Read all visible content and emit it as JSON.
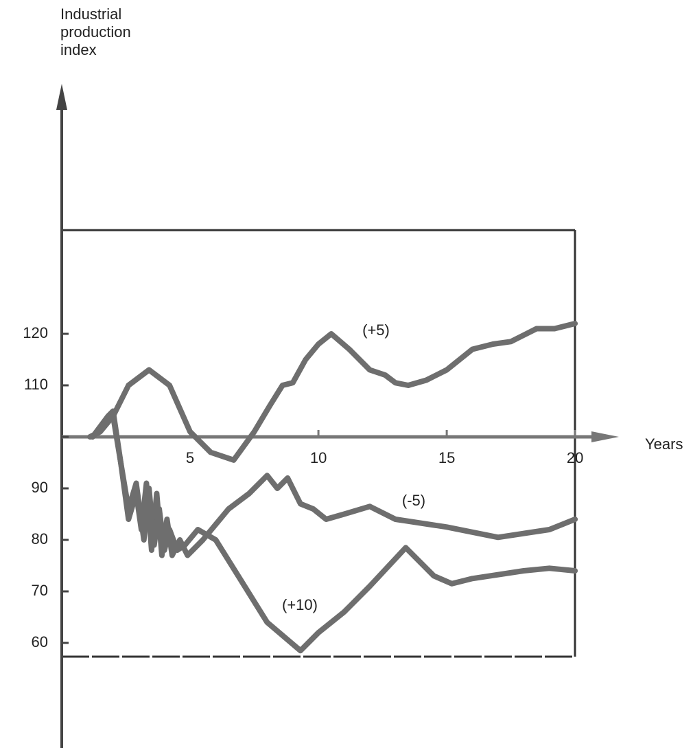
{
  "chart_data": {
    "type": "line",
    "ylabel": [
      "Industrial",
      "production",
      "index"
    ],
    "xlabel": "Years",
    "xlim": [
      0,
      21.6
    ],
    "xticks": [
      5,
      10,
      15,
      20
    ],
    "ylim": [
      40,
      168
    ],
    "yticks": [
      60,
      70,
      80,
      90,
      100,
      110,
      120
    ],
    "ytick_labels_hidden": [
      100
    ],
    "series": [
      {
        "name": "(+5)",
        "color": "#6e6e6e",
        "x": [
          1.1,
          1.5,
          2.0,
          2.6,
          3.4,
          4.2,
          5.0,
          5.8,
          6.7,
          7.5,
          8.1,
          8.6,
          9.0,
          9.5,
          10.0,
          10.5,
          11.2,
          12.0,
          12.6,
          13.0,
          13.5,
          14.2,
          15.0,
          16.0,
          16.8,
          17.5,
          18.5,
          19.2,
          20.0
        ],
        "values": [
          100,
          101,
          104,
          110,
          113,
          110,
          101,
          97,
          95.5,
          101,
          106,
          110,
          110.5,
          115,
          118,
          120,
          117,
          113,
          112,
          110.5,
          110,
          111,
          113,
          117,
          118,
          118.5,
          121,
          121,
          122
        ]
      },
      {
        "name": "(-5)",
        "color": "#6e6e6e",
        "x": [
          1.2,
          1.8,
          2.0,
          2.3,
          2.6,
          2.9,
          3.1,
          3.3,
          3.5,
          3.7,
          3.9,
          4.1,
          4.3,
          4.6,
          4.9,
          5.5,
          6.5,
          7.3,
          8.0,
          8.4,
          8.8,
          9.3,
          9.8,
          10.3,
          11.0,
          12.0,
          13.0,
          15.0,
          17.0,
          19.0,
          20.0
        ],
        "values": [
          100,
          104,
          105,
          95,
          84,
          89,
          82,
          91,
          78,
          89,
          77,
          84,
          77,
          80,
          77,
          80,
          86,
          89,
          92.5,
          90,
          92,
          87,
          86,
          84,
          85,
          86.5,
          84,
          82.5,
          80.5,
          82,
          84
        ]
      },
      {
        "name": "(+10)",
        "color": "#6e6e6e",
        "x": [
          1.2,
          1.6,
          2.0,
          2.3,
          2.6,
          2.9,
          3.2,
          3.4,
          3.6,
          3.8,
          4.0,
          4.2,
          4.5,
          4.8,
          5.3,
          6.0,
          7.0,
          8.0,
          9.3,
          10.0,
          11.0,
          12.0,
          13.4,
          14.5,
          15.2,
          16.0,
          18.0,
          19.0,
          20.0
        ],
        "values": [
          100,
          102,
          104,
          95,
          86,
          91,
          80,
          90,
          79,
          86,
          78,
          82,
          78,
          79,
          82,
          80,
          72,
          64,
          58.5,
          62,
          66,
          71,
          78.5,
          73,
          71.5,
          72.5,
          74,
          74.5,
          74
        ]
      }
    ]
  }
}
